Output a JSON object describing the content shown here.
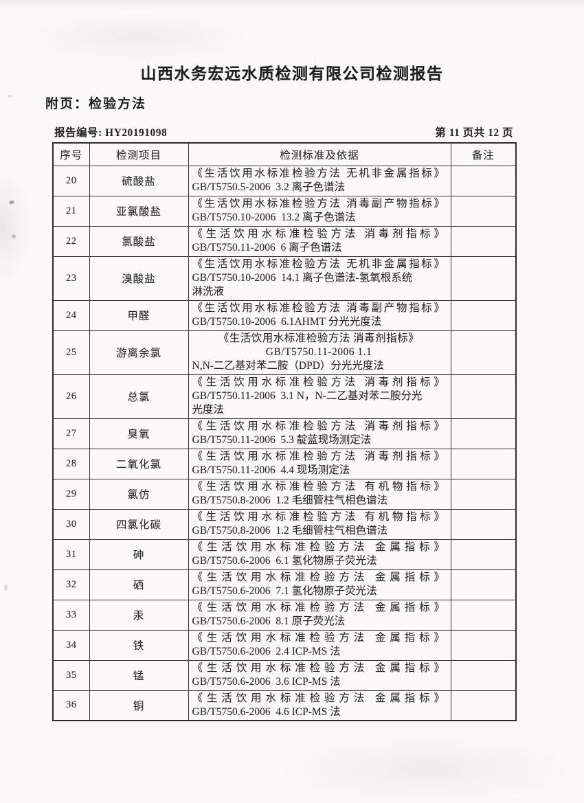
{
  "page": {
    "title": "山西水务宏远水质检测有限公司检测报告",
    "subtitle": "附页：检验方法",
    "report_no": "报告编号: HY20191098",
    "page_indicator": "第 11 页共 12 页"
  },
  "colors": {
    "ink": "#262626",
    "border": "#333333",
    "paper": "#fbfaf7"
  },
  "table": {
    "headers": [
      "序号",
      "检测项目",
      "检测标准及依据",
      "备注"
    ],
    "rows": [
      {
        "no": "20",
        "item": "硫酸盐",
        "standard": [
          {
            "t": "《生活饮用水标准检验方法 无机非金属指标》",
            "a": "q"
          },
          {
            "t": "GB/T5750.5-2006  3.2 离子色谱法"
          }
        ],
        "note": ""
      },
      {
        "no": "21",
        "item": "亚氯酸盐",
        "standard": [
          {
            "t": "《生活饮用水标准检验方法 消毒副产物指标》",
            "a": "q"
          },
          {
            "t": "GB/T5750.10-2006  13.2 离子色谱法"
          }
        ],
        "note": ""
      },
      {
        "no": "22",
        "item": "氯酸盐",
        "standard": [
          {
            "t": "《生活饮用水标准检验方法 消毒剂指标》",
            "a": "q"
          },
          {
            "t": "GB/T5750.11-2006  6 离子色谱法"
          }
        ],
        "note": ""
      },
      {
        "no": "23",
        "item": "溴酸盐",
        "tall": true,
        "standard": [
          {
            "t": "《生活饮用水标准检验方法 无机非金属指标》",
            "a": "q"
          },
          {
            "t": "GB/T5750.10-2006  14.1 离子色谱法-氢氧根系统"
          },
          {
            "t": "淋洗液"
          }
        ],
        "note": ""
      },
      {
        "no": "24",
        "item": "甲醛",
        "standard": [
          {
            "t": "《生活饮用水标准检验方法 消毒副产物指标》",
            "a": "q"
          },
          {
            "t": "GB/T5750.10-2006  6.1AHMT 分光光度法"
          }
        ],
        "note": ""
      },
      {
        "no": "25",
        "item": "游离余氯",
        "tall": true,
        "standard": [
          {
            "t": "《生活饮用水标准检验方法 消毒剂指标》",
            "a": "c"
          },
          {
            "t": "GB/T5750.11-2006 1.1",
            "a": "c"
          },
          {
            "t": "N,N-二乙基对苯二胺（DPD）分光光度法"
          }
        ],
        "note": ""
      },
      {
        "no": "26",
        "item": "总氯",
        "tall": true,
        "standard": [
          {
            "t": "《生活饮用水标准检验方法 消毒剂指标》",
            "a": "q"
          },
          {
            "t": "GB/T5750.11-2006  3.1 N，N-二乙基对苯二胺分光"
          },
          {
            "t": "光度法"
          }
        ],
        "note": ""
      },
      {
        "no": "27",
        "item": "臭氧",
        "standard": [
          {
            "t": "《生活饮用水标准检验方法 消毒剂指标》",
            "a": "q"
          },
          {
            "t": "GB/T5750.11-2006  5.3 靛蓝现场测定法"
          }
        ],
        "note": ""
      },
      {
        "no": "28",
        "item": "二氧化氯",
        "standard": [
          {
            "t": "《生活饮用水标准检验方法 消毒剂指标》",
            "a": "q"
          },
          {
            "t": "GB/T5750.11-2006  4.4 现场测定法"
          }
        ],
        "note": ""
      },
      {
        "no": "29",
        "item": "氯仿",
        "standard": [
          {
            "t": "《生活饮用水标准检验方法 有机物指标》",
            "a": "q"
          },
          {
            "t": "GB/T5750.8-2006  1.2 毛细管柱气相色谱法"
          }
        ],
        "note": ""
      },
      {
        "no": "30",
        "item": "四氯化碳",
        "standard": [
          {
            "t": "《生活饮用水标准检验方法 有机物指标》",
            "a": "q"
          },
          {
            "t": "GB/T5750.8-2006  1.2 毛细管柱气相色谱法"
          }
        ],
        "note": ""
      },
      {
        "no": "31",
        "item": "砷",
        "standard": [
          {
            "t": "《生活饮用水标准检验方法 金属指标》",
            "a": "q"
          },
          {
            "t": "GB/T5750.6-2006  6.1 氢化物原子荧光法"
          }
        ],
        "note": ""
      },
      {
        "no": "32",
        "item": "硒",
        "standard": [
          {
            "t": "《生活饮用水标准检验方法 金属指标》",
            "a": "q"
          },
          {
            "t": "GB/T5750.6-2006  7.1 氢化物原子荧光法"
          }
        ],
        "note": ""
      },
      {
        "no": "33",
        "item": "汞",
        "standard": [
          {
            "t": "《生活饮用水标准检验方法 金属指标》",
            "a": "q"
          },
          {
            "t": "GB/T5750.6-2006  8.1 原子荧光法"
          }
        ],
        "note": ""
      },
      {
        "no": "34",
        "item": "铁",
        "standard": [
          {
            "t": "《生活饮用水标准检验方法 金属指标》",
            "a": "q"
          },
          {
            "t": "GB/T5750.6-2006  2.4 ICP-MS 法"
          }
        ],
        "note": ""
      },
      {
        "no": "35",
        "item": "锰",
        "standard": [
          {
            "t": "《生活饮用水标准检验方法 金属指标》",
            "a": "q"
          },
          {
            "t": "GB/T5750.6-2006  3.6 ICP-MS 法"
          }
        ],
        "note": ""
      },
      {
        "no": "36",
        "item": "铜",
        "standard": [
          {
            "t": "《生活饮用水标准检验方法 金属指标》",
            "a": "q"
          },
          {
            "t": "GB/T5750.6-2006  4.6 ICP-MS 法"
          }
        ],
        "note": ""
      }
    ]
  }
}
